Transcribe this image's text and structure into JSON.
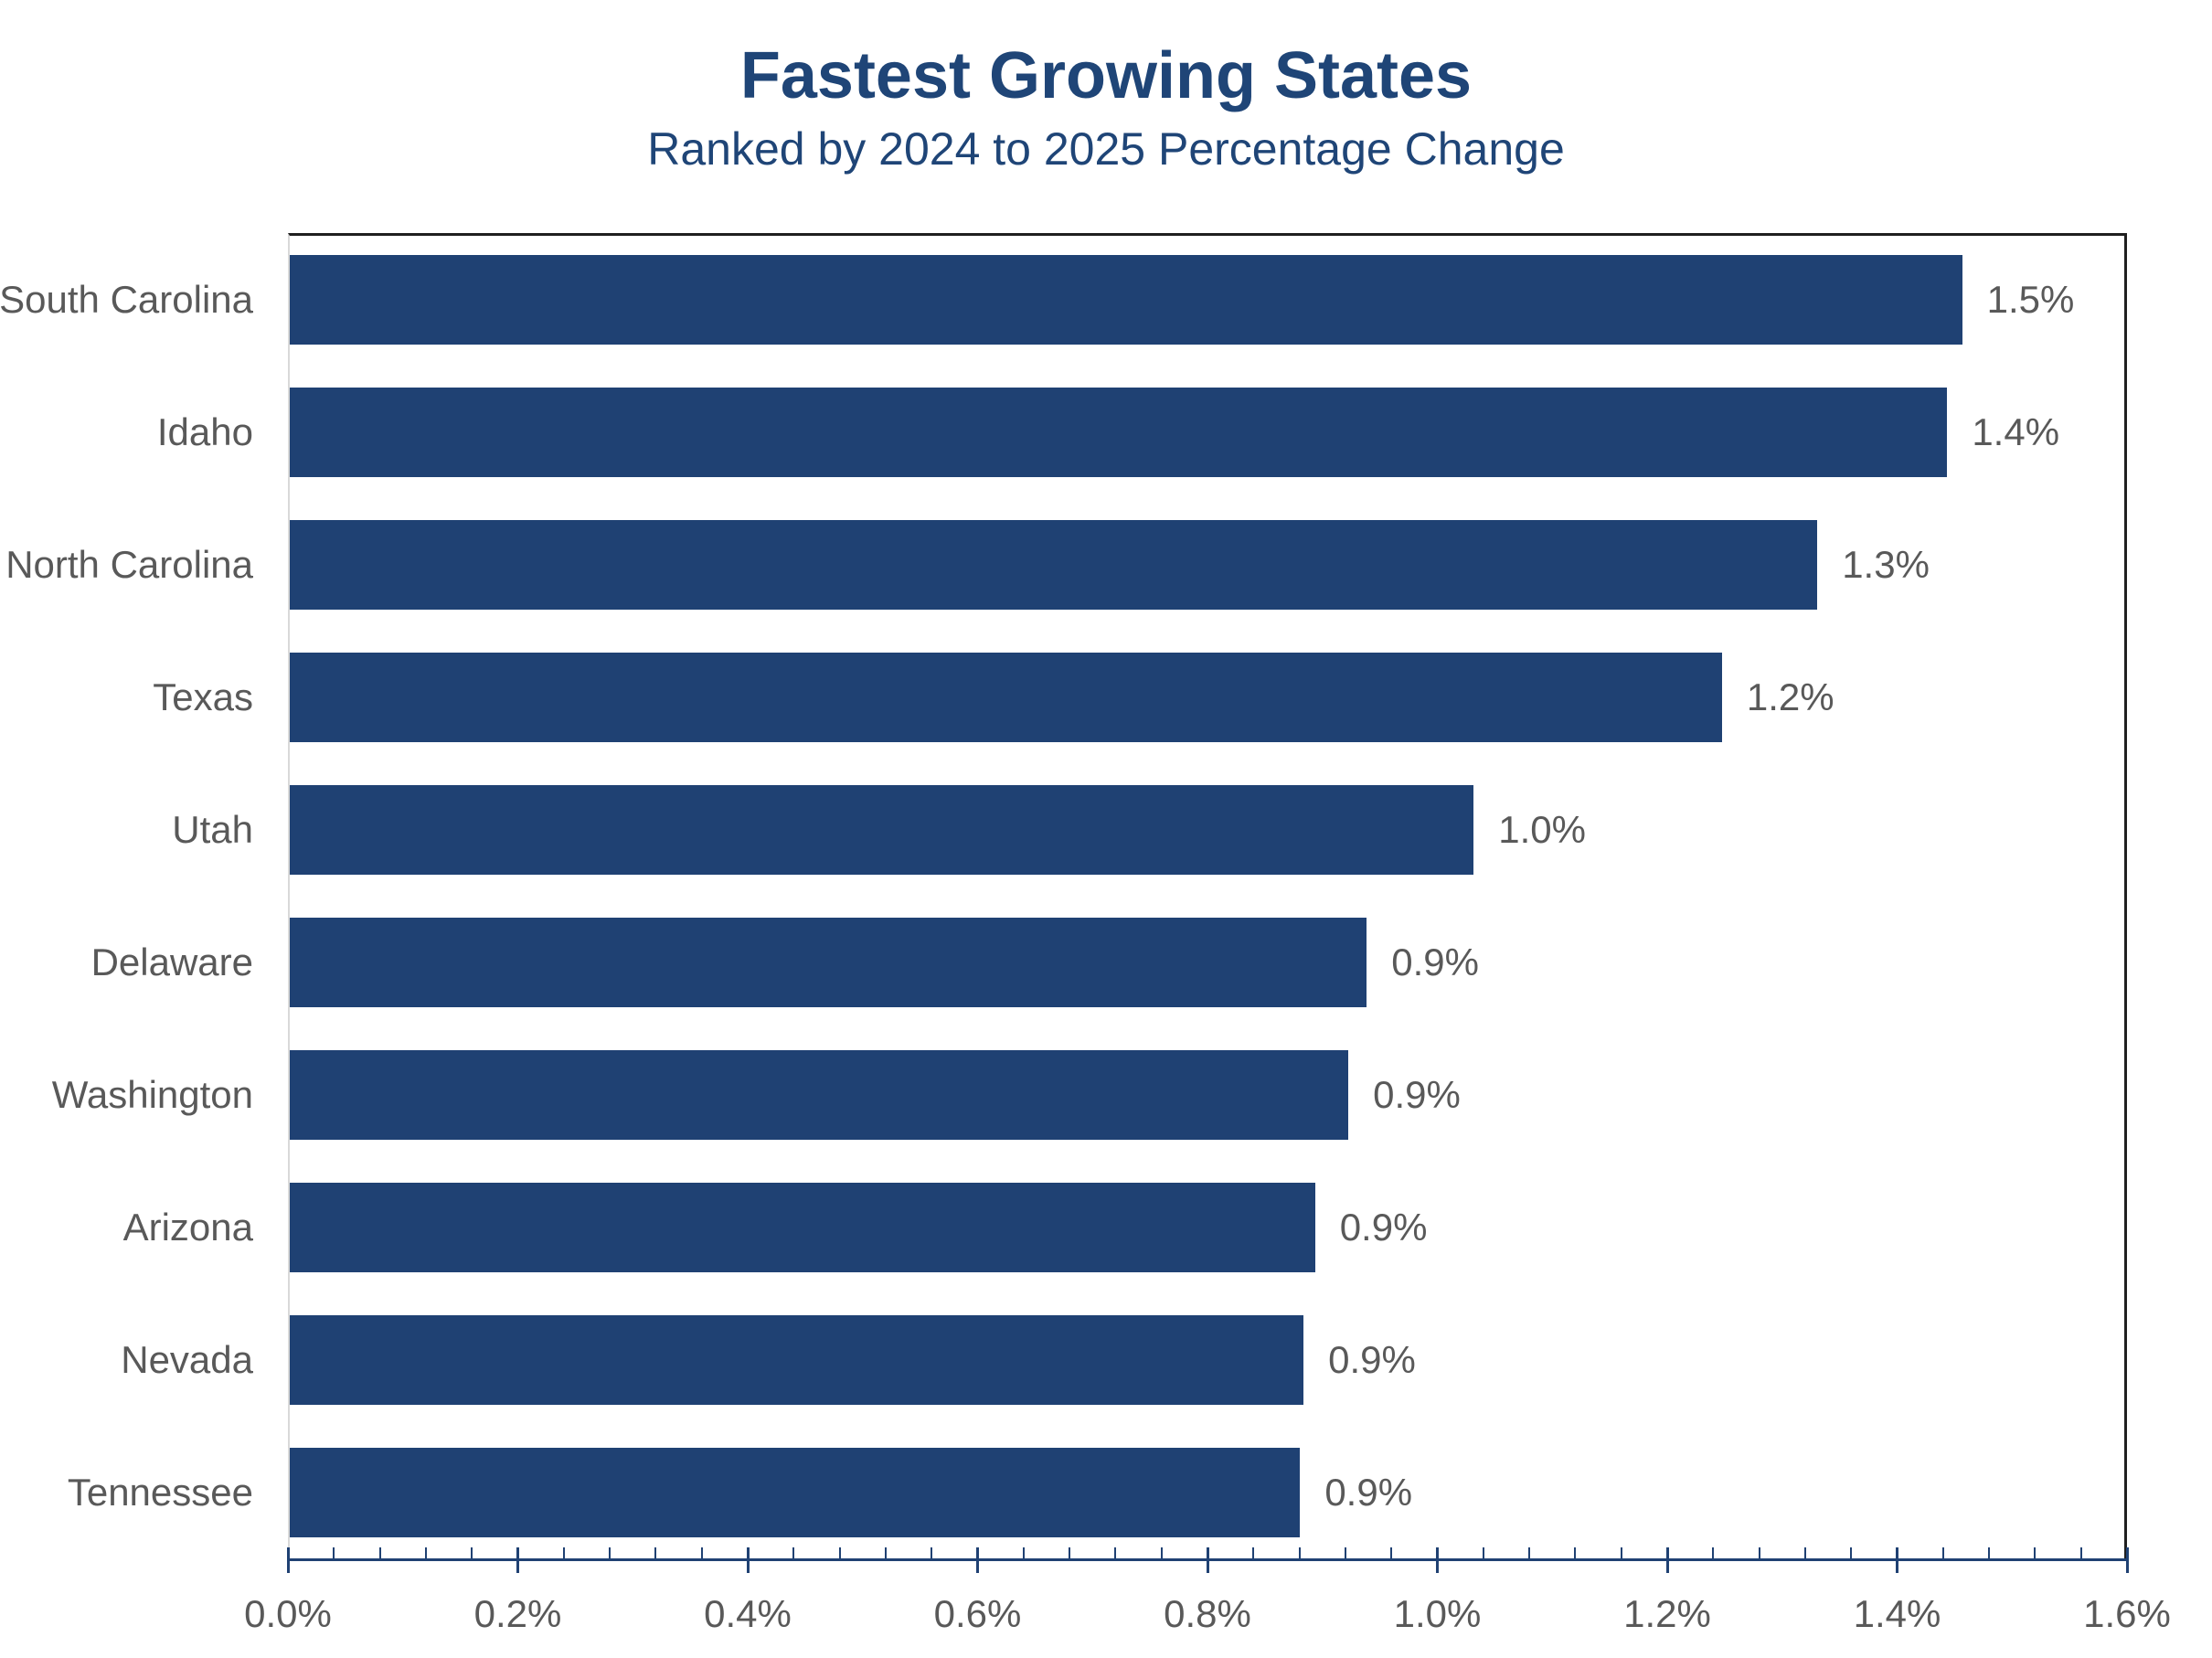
{
  "title": {
    "text": "Fastest Growing States",
    "subtitle": "Ranked by 2024 to 2025 Percentage Change"
  },
  "colors": {
    "bar": "#1f4173",
    "axis": "#1f4173",
    "title_text": "#1f4577",
    "gray_text": "#595959",
    "plot_border_dark": "#1f1f1f",
    "plot_border_light": "#d9d9d9"
  },
  "chart_data": {
    "type": "bar",
    "orientation": "horizontal",
    "title": "Fastest Growing States",
    "subtitle": "Ranked by 2024 to 2025 Percentage Change",
    "xlabel": "",
    "ylabel": "",
    "categories": [
      "South Carolina",
      "Idaho",
      "North Carolina",
      "Texas",
      "Utah",
      "Delaware",
      "Washington",
      "Arizona",
      "Nevada",
      "Tennessee"
    ],
    "values": [
      1.455,
      1.442,
      1.329,
      1.246,
      1.03,
      0.937,
      0.921,
      0.892,
      0.882,
      0.879
    ],
    "value_labels": [
      "1.5%",
      "1.4%",
      "1.3%",
      "1.2%",
      "1.0%",
      "0.9%",
      "0.9%",
      "0.9%",
      "0.9%",
      "0.9%"
    ],
    "xlim": [
      0,
      1.6
    ],
    "x_major_unit": 0.2,
    "x_minor_unit": 0.04,
    "x_tick_labels": [
      "0.0%",
      "0.2%",
      "0.4%",
      "0.6%",
      "0.8%",
      "1.0%",
      "1.2%",
      "1.4%",
      "1.6%"
    ],
    "grid": false,
    "legend": false,
    "data_labels": true
  }
}
